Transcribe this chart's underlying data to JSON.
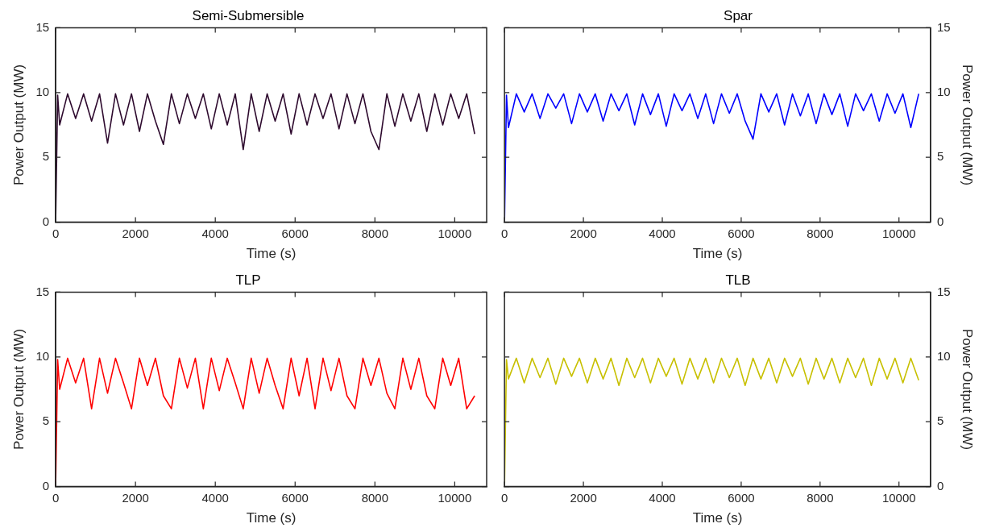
{
  "chart_data": [
    {
      "type": "line",
      "title": "Semi-Submersible",
      "xlabel": "Time (s)",
      "ylabel": "Power Output (MW)",
      "xlim": [
        0,
        10800
      ],
      "xticks": [
        0,
        2000,
        4000,
        6000,
        8000,
        10000
      ],
      "ylim": [
        0,
        15
      ],
      "yticks": [
        0,
        5,
        10,
        15
      ],
      "grid": false,
      "legend": false,
      "x": [
        0,
        50,
        100,
        300,
        500,
        700,
        900,
        1100,
        1300,
        1500,
        1700,
        1900,
        2100,
        2300,
        2500,
        2700,
        2900,
        3100,
        3300,
        3500,
        3700,
        3900,
        4100,
        4300,
        4500,
        4700,
        4900,
        5100,
        5300,
        5500,
        5700,
        5900,
        6100,
        6300,
        6500,
        6700,
        6900,
        7100,
        7300,
        7500,
        7700,
        7900,
        8100,
        8300,
        8500,
        8700,
        8900,
        9100,
        9300,
        9500,
        9700,
        9900,
        10100,
        10300,
        10500
      ],
      "series": [
        {
          "color": "#2e0a2e",
          "values": [
            0,
            9.8,
            7.5,
            9.9,
            8.0,
            9.9,
            7.8,
            9.9,
            6.1,
            9.9,
            7.5,
            9.9,
            7.0,
            9.9,
            7.8,
            6.0,
            9.9,
            7.6,
            9.9,
            8.0,
            9.9,
            7.2,
            9.9,
            7.5,
            9.9,
            5.6,
            9.9,
            7.0,
            9.9,
            7.8,
            9.9,
            6.8,
            9.9,
            7.5,
            9.9,
            8.0,
            9.9,
            7.2,
            9.9,
            7.6,
            9.9,
            7.0,
            5.6,
            9.9,
            7.4,
            9.9,
            7.8,
            9.9,
            7.0,
            9.9,
            7.5,
            9.9,
            8.0,
            9.9,
            6.8
          ]
        }
      ]
    },
    {
      "type": "line",
      "title": "Spar",
      "xlabel": "Time (s)",
      "ylabel": "Power Output (MW)",
      "xlim": [
        0,
        10800
      ],
      "xticks": [
        0,
        2000,
        4000,
        6000,
        8000,
        10000
      ],
      "ylim": [
        0,
        15
      ],
      "yticks": [
        0,
        5,
        10,
        15
      ],
      "grid": false,
      "legend": false,
      "x": [
        0,
        50,
        100,
        300,
        500,
        700,
        900,
        1100,
        1300,
        1500,
        1700,
        1900,
        2100,
        2300,
        2500,
        2700,
        2900,
        3100,
        3300,
        3500,
        3700,
        3900,
        4100,
        4300,
        4500,
        4700,
        4900,
        5100,
        5300,
        5500,
        5700,
        5900,
        6100,
        6300,
        6500,
        6700,
        6900,
        7100,
        7300,
        7500,
        7700,
        7900,
        8100,
        8300,
        8500,
        8700,
        8900,
        9100,
        9300,
        9500,
        9700,
        9900,
        10100,
        10300,
        10500
      ],
      "series": [
        {
          "color": "#0000ff",
          "values": [
            0,
            9.8,
            7.3,
            9.9,
            8.5,
            9.9,
            8.0,
            9.9,
            8.8,
            9.9,
            7.6,
            9.9,
            8.5,
            9.9,
            7.8,
            9.9,
            8.6,
            9.9,
            7.5,
            9.9,
            8.3,
            9.9,
            7.4,
            9.9,
            8.6,
            9.9,
            8.0,
            9.9,
            7.6,
            9.9,
            8.4,
            9.9,
            7.8,
            6.4,
            9.9,
            8.5,
            9.9,
            7.5,
            9.9,
            8.2,
            9.9,
            7.6,
            9.9,
            8.3,
            9.9,
            7.4,
            9.9,
            8.6,
            9.9,
            7.8,
            9.9,
            8.4,
            9.9,
            7.3,
            9.9
          ]
        }
      ]
    },
    {
      "type": "line",
      "title": "TLP",
      "xlabel": "Time (s)",
      "ylabel": "Power Output (MW)",
      "xlim": [
        0,
        10800
      ],
      "xticks": [
        0,
        2000,
        4000,
        6000,
        8000,
        10000
      ],
      "ylim": [
        0,
        15
      ],
      "yticks": [
        0,
        5,
        10,
        15
      ],
      "grid": false,
      "legend": false,
      "x": [
        0,
        50,
        100,
        300,
        500,
        700,
        900,
        1100,
        1300,
        1500,
        1700,
        1900,
        2100,
        2300,
        2500,
        2700,
        2900,
        3100,
        3300,
        3500,
        3700,
        3900,
        4100,
        4300,
        4500,
        4700,
        4900,
        5100,
        5300,
        5500,
        5700,
        5900,
        6100,
        6300,
        6500,
        6700,
        6900,
        7100,
        7300,
        7500,
        7700,
        7900,
        8100,
        8300,
        8500,
        8700,
        8900,
        9100,
        9300,
        9500,
        9700,
        9900,
        10100,
        10300,
        10500
      ],
      "series": [
        {
          "color": "#ff0000",
          "values": [
            0,
            9.8,
            7.5,
            9.9,
            8.0,
            9.9,
            6.0,
            9.9,
            7.2,
            9.9,
            8.0,
            6.0,
            9.9,
            7.8,
            9.9,
            7.0,
            6.0,
            9.9,
            7.6,
            9.9,
            6.0,
            9.9,
            7.4,
            9.9,
            8.0,
            6.0,
            9.9,
            7.2,
            9.9,
            7.8,
            6.0,
            9.9,
            7.0,
            9.9,
            6.0,
            9.9,
            7.4,
            9.9,
            7.0,
            6.0,
            9.9,
            7.8,
            9.9,
            7.2,
            6.0,
            9.9,
            7.5,
            9.9,
            7.0,
            6.0,
            9.9,
            7.8,
            9.9,
            6.0,
            7.0
          ]
        }
      ]
    },
    {
      "type": "line",
      "title": "TLB",
      "xlabel": "Time (s)",
      "ylabel": "Power Output (MW)",
      "xlim": [
        0,
        10800
      ],
      "xticks": [
        0,
        2000,
        4000,
        6000,
        8000,
        10000
      ],
      "ylim": [
        0,
        15
      ],
      "yticks": [
        0,
        5,
        10,
        15
      ],
      "grid": false,
      "legend": false,
      "x": [
        0,
        50,
        100,
        300,
        500,
        700,
        900,
        1100,
        1300,
        1500,
        1700,
        1900,
        2100,
        2300,
        2500,
        2700,
        2900,
        3100,
        3300,
        3500,
        3700,
        3900,
        4100,
        4300,
        4500,
        4700,
        4900,
        5100,
        5300,
        5500,
        5700,
        5900,
        6100,
        6300,
        6500,
        6700,
        6900,
        7100,
        7300,
        7500,
        7700,
        7900,
        8100,
        8300,
        8500,
        8700,
        8900,
        9100,
        9300,
        9500,
        9700,
        9900,
        10100,
        10300,
        10500
      ],
      "series": [
        {
          "color": "#c8c000",
          "values": [
            0,
            9.8,
            8.3,
            9.9,
            8.0,
            9.9,
            8.4,
            9.9,
            7.9,
            9.9,
            8.5,
            9.9,
            8.0,
            9.9,
            8.3,
            9.9,
            7.8,
            9.9,
            8.4,
            9.9,
            8.0,
            9.9,
            8.5,
            9.9,
            7.9,
            9.9,
            8.3,
            9.9,
            8.0,
            9.9,
            8.4,
            9.9,
            7.8,
            9.9,
            8.3,
            9.9,
            8.0,
            9.9,
            8.5,
            9.9,
            7.9,
            9.9,
            8.3,
            9.9,
            8.0,
            9.9,
            8.4,
            9.9,
            7.8,
            9.9,
            8.3,
            9.9,
            8.0,
            9.9,
            8.2
          ]
        }
      ]
    }
  ]
}
